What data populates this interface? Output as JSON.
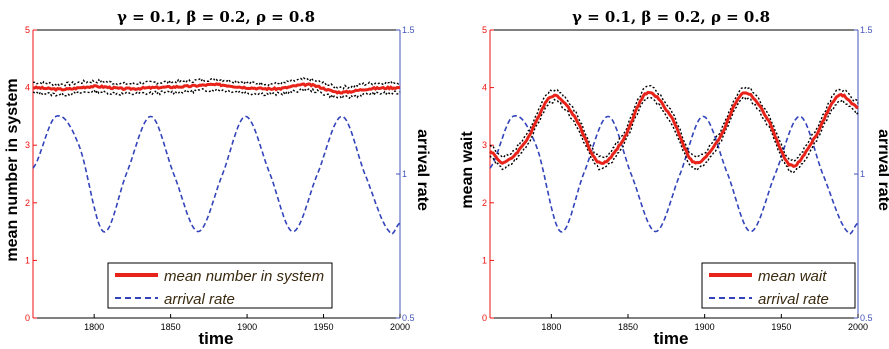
{
  "chart_data": [
    {
      "type": "line",
      "title": "γ = 0.1, β = 0.2, ρ = 0.8",
      "xlabel": "time",
      "ylabel_left": "mean number in system",
      "ylabel_right": "arrival rate",
      "xlim": [
        1760,
        2000
      ],
      "ylim_left": [
        0,
        5
      ],
      "ylim_right": [
        0.5,
        1.5
      ],
      "x_ticks": [
        1800,
        1850,
        1900,
        1950,
        2000
      ],
      "y_ticks_left": [
        0,
        1,
        2,
        3,
        4,
        5
      ],
      "y_ticks_right": [
        0.5,
        1,
        1.5
      ],
      "grid": false,
      "legend_position": "bottom-center",
      "series": [
        {
          "name": "mean number in system",
          "axis": "left",
          "color": "#e8231a",
          "style": "solid",
          "x": [
            1760,
            1780,
            1800,
            1820,
            1840,
            1860,
            1880,
            1900,
            1920,
            1940,
            1960,
            1980,
            2000
          ],
          "values": [
            4.0,
            3.97,
            4.02,
            3.98,
            4.0,
            4.02,
            4.05,
            4.0,
            3.98,
            4.05,
            3.92,
            3.98,
            4.0
          ]
        },
        {
          "name": "arrival rate",
          "axis": "right",
          "color": "#3344bb",
          "style": "dashed",
          "x": [
            1760,
            1775,
            1790,
            1806,
            1821,
            1837,
            1852,
            1868,
            1884,
            1899,
            1915,
            1930,
            1946,
            1962,
            1977,
            1993,
            2000
          ],
          "values": [
            1.02,
            1.2,
            1.1,
            0.8,
            1.0,
            1.2,
            1.0,
            0.8,
            1.0,
            1.2,
            1.0,
            0.8,
            1.0,
            1.2,
            1.0,
            0.8,
            0.83
          ]
        }
      ],
      "confidence_band": {
        "color": "#000000",
        "style": "dotted",
        "halfwidth": 0.09
      }
    },
    {
      "type": "line",
      "title": "γ = 0.1, β = 0.2, ρ = 0.8",
      "xlabel": "time",
      "ylabel_left": "mean wait",
      "ylabel_right": "arrival rate",
      "xlim": [
        1760,
        2000
      ],
      "ylim_left": [
        0,
        5
      ],
      "ylim_right": [
        0.5,
        1.5
      ],
      "x_ticks": [
        1800,
        1850,
        1900,
        1950,
        2000
      ],
      "y_ticks_left": [
        0,
        1,
        2,
        3,
        4,
        5
      ],
      "y_ticks_right": [
        0.5,
        1,
        1.5
      ],
      "grid": false,
      "legend_position": "bottom-right",
      "series": [
        {
          "name": "mean wait",
          "axis": "left",
          "color": "#e8231a",
          "style": "solid",
          "x": [
            1760,
            1769,
            1784,
            1800,
            1815,
            1831,
            1847,
            1862,
            1878,
            1893,
            1909,
            1925,
            1940,
            1956,
            1971,
            1987,
            2000
          ],
          "values": [
            2.9,
            2.7,
            3.1,
            3.85,
            3.5,
            2.7,
            3.1,
            3.9,
            3.5,
            2.7,
            3.1,
            3.9,
            3.5,
            2.65,
            3.1,
            3.85,
            3.65
          ]
        },
        {
          "name": "arrival rate",
          "axis": "right",
          "color": "#3344bb",
          "style": "dashed",
          "x": [
            1760,
            1775,
            1790,
            1806,
            1821,
            1837,
            1852,
            1868,
            1884,
            1899,
            1915,
            1930,
            1946,
            1962,
            1977,
            1993,
            2000
          ],
          "values": [
            1.02,
            1.2,
            1.1,
            0.8,
            1.0,
            1.2,
            1.0,
            0.8,
            1.0,
            1.2,
            1.0,
            0.8,
            1.0,
            1.2,
            1.0,
            0.8,
            0.83
          ]
        }
      ],
      "confidence_band": {
        "color": "#000000",
        "style": "dotted",
        "halfwidth": 0.1
      }
    }
  ],
  "colors": {
    "left_axis": "#ee1111",
    "right_axis": "#4455bb",
    "axes_frame": "#000000"
  }
}
